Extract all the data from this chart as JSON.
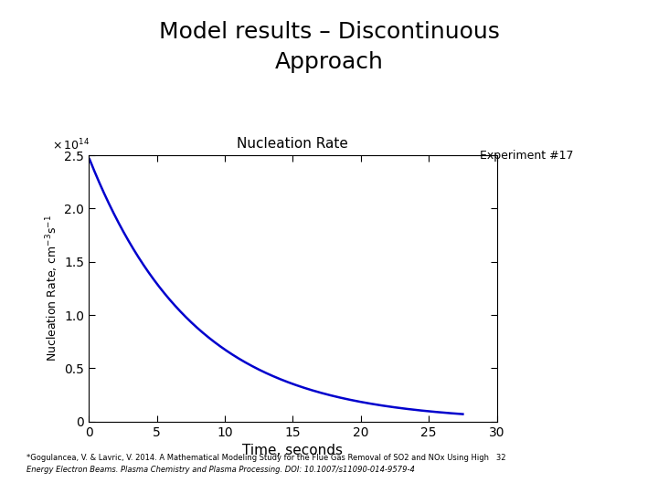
{
  "title_line1": "Model results – Discontinuous",
  "title_line2": "Approach",
  "plot_title": "Nucleation Rate",
  "experiment_label": "Experiment #17",
  "xlabel": "Time, seconds",
  "ylabel": "Nucleation Rate, cm⁻³s⁻¹",
  "xlim": [
    0,
    30
  ],
  "ylim": [
    0,
    250000000000000.0
  ],
  "ytick_multiplier": 100000000000000.0,
  "yticks": [
    0,
    0.5,
    1.0,
    1.5,
    2.0,
    2.5
  ],
  "xticks": [
    0,
    5,
    10,
    15,
    20,
    25,
    30
  ],
  "line_color": "#0000CD",
  "decay_rate": 0.13,
  "x_start": 0.05,
  "x_end": 27.5,
  "initial_value": 248000000000000.0,
  "background_color": "#ffffff",
  "title_fontsize": 18,
  "plot_title_fontsize": 11,
  "experiment_fontsize": 9,
  "footnote_fontsize": 6,
  "footnote_line1": "*Gogulancea, V. & Lavric, V. 2014. A Mathematical Modeling Study for the Flue Gas Removal of SO2 and NOx Using High   32",
  "footnote_line2": "Energy Electron Beams. Plasma Chemistry and Plasma Processing. DOI: 10.1007/s11090-014-9579-4"
}
